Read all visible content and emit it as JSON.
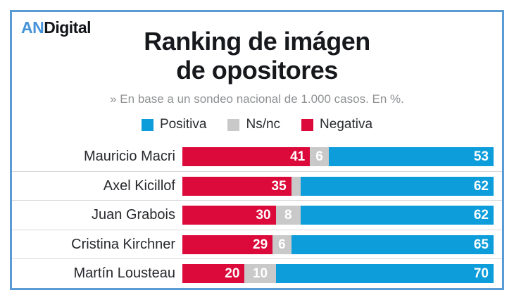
{
  "brand": {
    "logo_prefix": "AN",
    "logo_suffix": "Digital"
  },
  "title": {
    "line1": "Ranking de imágen",
    "line2": "de opositores"
  },
  "subtitle": "» En base a un sondeo nacional de 1.000 casos. En %.",
  "legend": [
    {
      "label": "Positiva",
      "color": "#0d9ddb"
    },
    {
      "label": "Ns/nc",
      "color": "#c9c9c9"
    },
    {
      "label": "Negativa",
      "color": "#dc0a3a"
    }
  ],
  "colors": {
    "positiva": "#0d9ddb",
    "nsnc": "#c9c9c9",
    "negativa": "#dc0a3a",
    "border": "#5b9bd5",
    "logo_blue": "#4593d9",
    "divider": "#d9d9d9",
    "subtitle_gray": "#8f9193"
  },
  "chart_data": {
    "type": "bar",
    "orientation": "horizontal",
    "stacked": true,
    "title": "Ranking de imágen de opositores",
    "subtitle": "» En base a un sondeo nacional de 1.000 casos. En %.",
    "unit": "percent",
    "xlim": [
      0,
      100
    ],
    "grid": false,
    "legend_position": "top",
    "categories": [
      "Mauricio Macri",
      "Axel Kicillof",
      "Juan Grabois",
      "Cristina Kirchner",
      "Martín Lousteau"
    ],
    "series": [
      {
        "key": "negativa",
        "name": "Negativa",
        "color": "#dc0a3a",
        "align": "right",
        "values": [
          41,
          35,
          30,
          29,
          20
        ],
        "labels": [
          "41",
          "35",
          "30",
          "29",
          "20"
        ]
      },
      {
        "key": "nsnc",
        "name": "Ns/nc",
        "color": "#c9c9c9",
        "align": "center",
        "values": [
          6,
          3,
          8,
          6,
          10
        ],
        "labels": [
          "6",
          "",
          "8",
          "6",
          "10"
        ]
      },
      {
        "key": "positiva",
        "name": "Positiva",
        "color": "#0d9ddb",
        "align": "right",
        "values": [
          53,
          62,
          62,
          65,
          70
        ],
        "labels": [
          "53",
          "62",
          "62",
          "65",
          "70"
        ]
      }
    ]
  }
}
